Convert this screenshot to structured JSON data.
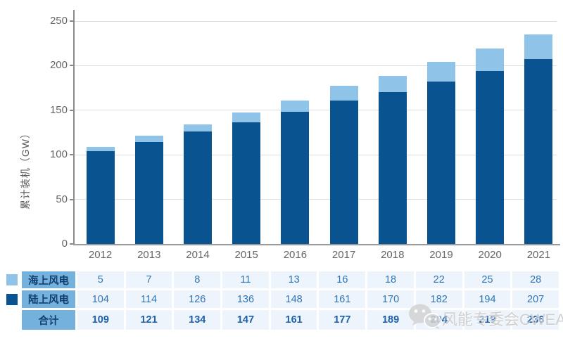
{
  "chart_data": {
    "type": "bar",
    "stacked": true,
    "categories": [
      "2012",
      "2013",
      "2014",
      "2015",
      "2016",
      "2017",
      "2018",
      "2019",
      "2020",
      "2021"
    ],
    "series": [
      {
        "name": "陆上风电",
        "color": "#0a5391",
        "values": [
          104,
          114,
          126,
          136,
          148,
          161,
          170,
          182,
          194,
          207
        ]
      },
      {
        "name": "海上风电",
        "color": "#8fc3e8",
        "values": [
          5,
          7,
          8,
          11,
          13,
          16,
          18,
          22,
          25,
          28
        ]
      }
    ],
    "totals": [
      109,
      121,
      134,
      147,
      161,
      177,
      189,
      204,
      219,
      236
    ],
    "title": "",
    "xlabel": "",
    "ylabel": "累计装机（GW）",
    "ylim": [
      0,
      250
    ],
    "yticks": [
      0,
      50,
      100,
      150,
      200,
      250
    ],
    "grid": true,
    "legend_position": "table-left"
  },
  "table": {
    "rows": [
      {
        "label": "海上风电",
        "swatch": "#8fc3e8",
        "bold": false,
        "values": [
          "5",
          "7",
          "8",
          "11",
          "13",
          "16",
          "18",
          "22",
          "25",
          "28"
        ]
      },
      {
        "label": "陆上风电",
        "swatch": "#0a5391",
        "bold": false,
        "values": [
          "104",
          "114",
          "126",
          "136",
          "148",
          "161",
          "170",
          "182",
          "194",
          "207"
        ]
      },
      {
        "label": "合计",
        "swatch": "",
        "bold": true,
        "values": [
          "109",
          "121",
          "134",
          "147",
          "161",
          "177",
          "189",
          "204",
          "219",
          "236"
        ]
      }
    ]
  },
  "watermark": {
    "text": "风能专委会CWEA",
    "icon": "wechat-icon"
  },
  "colors": {
    "bar_onshore": "#0a5391",
    "bar_offshore": "#8fc3e8",
    "table_label_bg": "#74b2dd",
    "table_value_bg": "#eef4fb",
    "value_text": "#2e75b6",
    "total_text": "#1e5fa9",
    "label_text": "#123f6e",
    "axis": "#8a8a8a",
    "gridline": "#dedede",
    "tick_text": "#666666",
    "watermark_text": "#c9c9c9"
  }
}
